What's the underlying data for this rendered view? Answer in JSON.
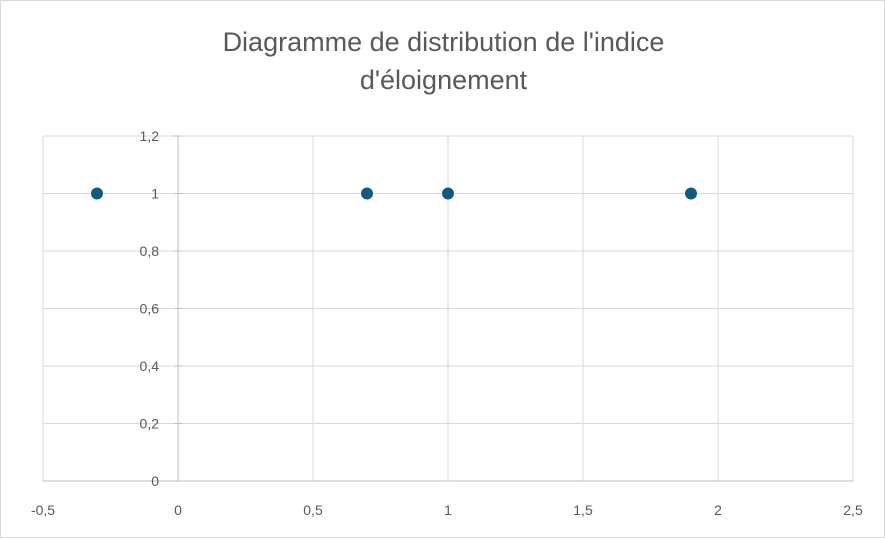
{
  "chart_data": {
    "type": "scatter",
    "title_lines": [
      "Diagramme de distribution de l'indice",
      "d'éloignement"
    ],
    "xlabel": "",
    "ylabel": "",
    "xlim": [
      -0.5,
      2.5
    ],
    "ylim": [
      0,
      1.2
    ],
    "x_ticks": [
      "-0,5",
      "0",
      "0,5",
      "1",
      "1,5",
      "2",
      "2,5"
    ],
    "x_tick_values": [
      -0.5,
      0,
      0.5,
      1,
      1.5,
      2,
      2.5
    ],
    "y_ticks": [
      "0",
      "0,2",
      "0,4",
      "0,6",
      "0,8",
      "1",
      "1,2"
    ],
    "y_tick_values": [
      0,
      0.2,
      0.4,
      0.6,
      0.8,
      1,
      1.2
    ],
    "grid": true,
    "legend": "none",
    "marker_color": "#125b80",
    "series": [
      {
        "points": [
          {
            "x": -0.3,
            "y": 1
          },
          {
            "x": 0.7,
            "y": 1
          },
          {
            "x": 1.0,
            "y": 1
          },
          {
            "x": 1.9,
            "y": 1
          }
        ]
      }
    ]
  }
}
